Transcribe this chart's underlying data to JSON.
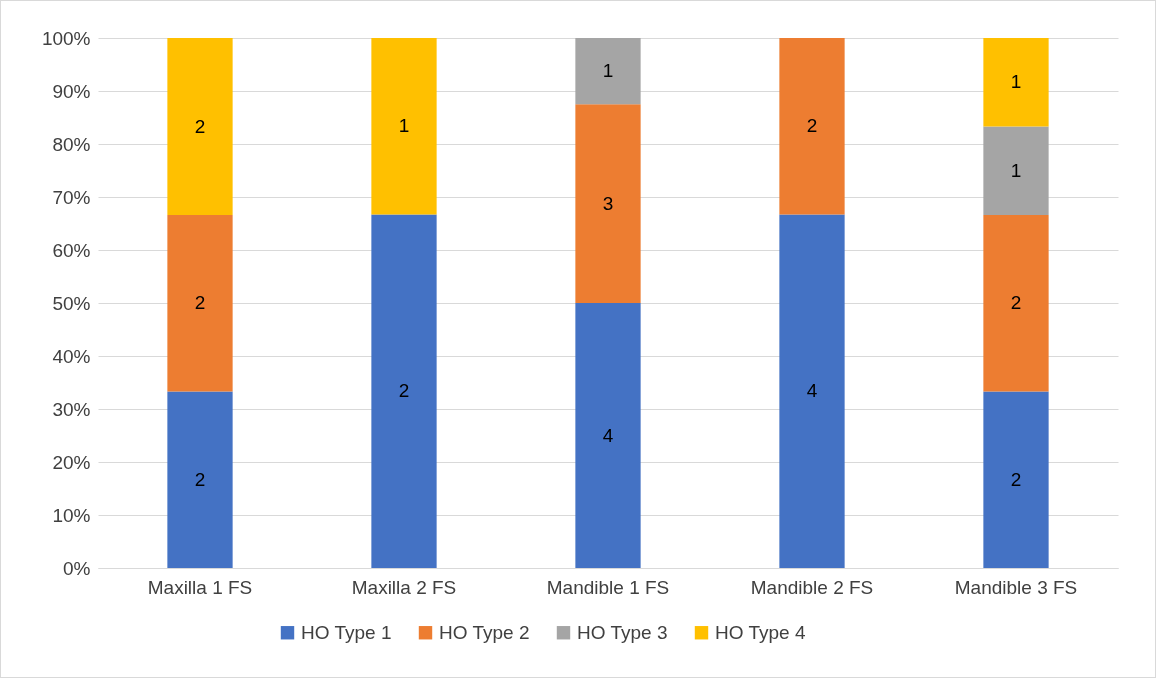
{
  "chart_data": {
    "type": "bar",
    "stacked": true,
    "categories": [
      "Maxilla 1 FS",
      "Maxilla 2 FS",
      "Mandible 1 FS",
      "Mandible 2 FS",
      "Mandible 3 FS"
    ],
    "series": [
      {
        "name": "HO Type 1",
        "color": "#4472c4",
        "values": [
          33.3,
          66.7,
          50,
          66.7,
          33.3
        ]
      },
      {
        "name": "HO Type 2",
        "color": "#ed7d31",
        "values": [
          33.3,
          null,
          37.5,
          33.3,
          33.3
        ]
      },
      {
        "name": "HO Type 3",
        "color": "#a5a5a5",
        "values": [
          null,
          null,
          12.5,
          null,
          16.7
        ]
      },
      {
        "name": "HO Type 4",
        "color": "#ffc000",
        "values": [
          33.4,
          33.3,
          null,
          null,
          16.7
        ]
      }
    ],
    "annotations": [
      "2",
      "2",
      "2",
      "2",
      "1",
      "4",
      "3",
      "1",
      "4",
      "2",
      "2",
      "2",
      "1",
      "1"
    ],
    "ylim": [
      0,
      100
    ],
    "yticks": [
      {
        "value": 0,
        "label": "0%"
      },
      {
        "value": 10,
        "label": "10%"
      },
      {
        "value": 20,
        "label": "20%"
      },
      {
        "value": 30,
        "label": "30%"
      },
      {
        "value": 40,
        "label": "40%"
      },
      {
        "value": 50,
        "label": "50%"
      },
      {
        "value": 60,
        "label": "60%"
      },
      {
        "value": 70,
        "label": "70%"
      },
      {
        "value": 80,
        "label": "80%"
      },
      {
        "value": 90,
        "label": "90%"
      },
      {
        "value": 100,
        "label": "100%"
      }
    ],
    "grid": "y",
    "legend": "bottom"
  }
}
